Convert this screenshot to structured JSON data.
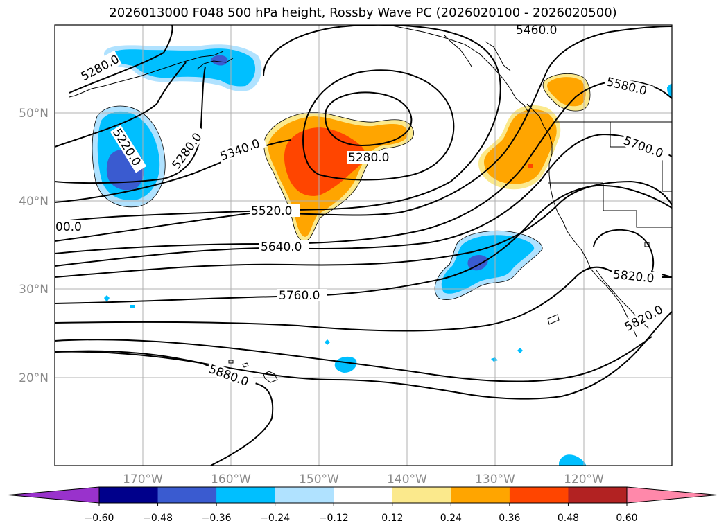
{
  "title": "2026013000 F048 500 hPa height, Rossby Wave PC (2026020100 - 2026020500)",
  "map": {
    "lon_labels": [
      "170°W",
      "160°W",
      "150°W",
      "140°W",
      "130°W",
      "120°W"
    ],
    "lat_labels": [
      "50°N",
      "40°N",
      "30°N",
      "20°N"
    ]
  },
  "contour_labels": {
    "c1": "5280.0",
    "c2": "5460.0",
    "c3": "5580.0",
    "c4": "5220.0",
    "c5": "5280.0",
    "c6": "5340.0",
    "c7": "5280.0",
    "c8": "5700.0",
    "c9": "5520.0",
    "c10": "00.0",
    "c11": "5640.0",
    "c12": "5820.0",
    "c13": "5760.0",
    "c14": "5820.0",
    "c15": "5880.0"
  },
  "colorbar": {
    "ticks": [
      "−0.60",
      "−0.48",
      "−0.36",
      "−0.24",
      "−0.12",
      "0.12",
      "0.24",
      "0.36",
      "0.48",
      "0.60"
    ],
    "colors": [
      "#9932cc",
      "#00008b",
      "#3a5bd0",
      "#00bfff",
      "#b0e2ff",
      "#ffffff",
      "#fbe98c",
      "#ffa500",
      "#ff4500",
      "#b22222",
      "#ff88aa"
    ]
  }
}
